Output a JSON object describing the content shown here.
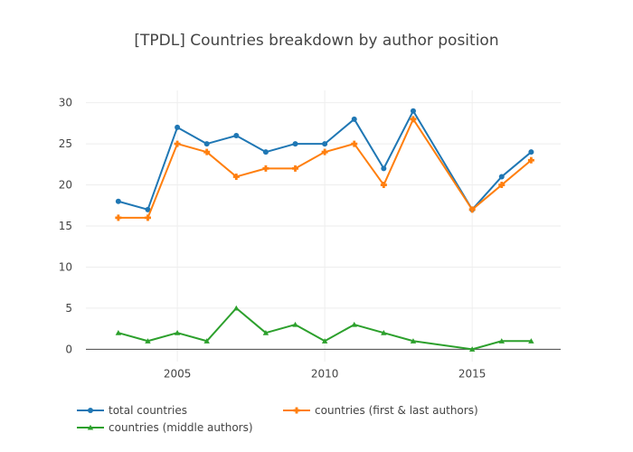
{
  "chart_data": {
    "type": "line",
    "title": "[TPDL] Countries breakdown by author position",
    "xlabel": "",
    "ylabel": "",
    "x": [
      2003,
      2004,
      2005,
      2006,
      2007,
      2008,
      2009,
      2010,
      2011,
      2012,
      2013,
      2015,
      2016,
      2017
    ],
    "xlim": [
      2001.9,
      2018
    ],
    "ylim": [
      -1.5,
      31.5
    ],
    "xticks": [
      2005,
      2010,
      2015
    ],
    "yticks": [
      0,
      5,
      10,
      15,
      20,
      25,
      30
    ],
    "grid": true,
    "legend_position": "bottom",
    "series": [
      {
        "name": "total countries",
        "color": "#1f77b4",
        "marker": "circle",
        "values": [
          18,
          17,
          27,
          25,
          26,
          24,
          25,
          25,
          28,
          22,
          29,
          17,
          21,
          24
        ]
      },
      {
        "name": "countries (first & last authors)",
        "color": "#ff7f0e",
        "marker": "cross",
        "values": [
          16,
          16,
          25,
          24,
          21,
          22,
          22,
          24,
          25,
          20,
          28,
          17,
          20,
          23
        ]
      },
      {
        "name": "countries (middle authors)",
        "color": "#2ca02c",
        "marker": "triangle-up",
        "values": [
          2,
          1,
          2,
          1,
          5,
          2,
          3,
          1,
          3,
          2,
          1,
          0,
          1,
          1
        ]
      }
    ]
  }
}
